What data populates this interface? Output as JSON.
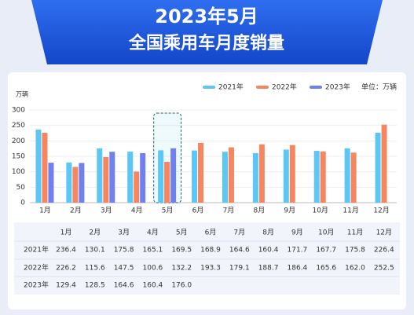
{
  "title": "2023年5月",
  "subtitle": "全国乘用车月度销量",
  "chart_data": {
    "type": "bar",
    "y_label": "万辆",
    "unit": "单位：万辆",
    "categories": [
      "1月",
      "2月",
      "3月",
      "4月",
      "5月",
      "6月",
      "7月",
      "8月",
      "9月",
      "10月",
      "11月",
      "12月"
    ],
    "series": [
      {
        "name": "2021年",
        "color": "#5cc6f4",
        "values": [
          236.4,
          130.1,
          175.8,
          165.1,
          169.5,
          168.9,
          164.6,
          160.4,
          171.7,
          167.7,
          175.8,
          226.4
        ],
        "value_labels": [
          "236.4",
          "130.1",
          "175.8",
          "165.1",
          "169.5",
          "168.9",
          "164.6",
          "160.4",
          "171.7",
          "167.7",
          "175.8",
          "226.4"
        ]
      },
      {
        "name": "2022年",
        "color": "#f5865f",
        "values": [
          226.2,
          115.6,
          147.5,
          100.6,
          132.2,
          193.3,
          179.1,
          188.7,
          186.4,
          165.6,
          162,
          252.5
        ],
        "value_labels": [
          "226.2",
          "115.6",
          "147.5",
          "100.6",
          "132.2",
          "193.3",
          "179.1",
          "188.7",
          "186.4",
          "165.6",
          "162.0",
          "252.5"
        ]
      },
      {
        "name": "2023年",
        "color": "#6f80ef",
        "values": [
          129.4,
          128.5,
          164.6,
          160.4,
          176.0,
          null,
          null,
          null,
          null,
          null,
          null,
          null
        ],
        "value_labels": [
          "129.4",
          "128.5",
          "164.6",
          "160.4",
          "176.0",
          null,
          null,
          null,
          null,
          null,
          null,
          null
        ]
      }
    ],
    "ylim": [
      0,
      300
    ],
    "yticks": [
      0,
      50,
      100,
      150,
      200,
      250,
      300
    ],
    "grid": true
  }
}
